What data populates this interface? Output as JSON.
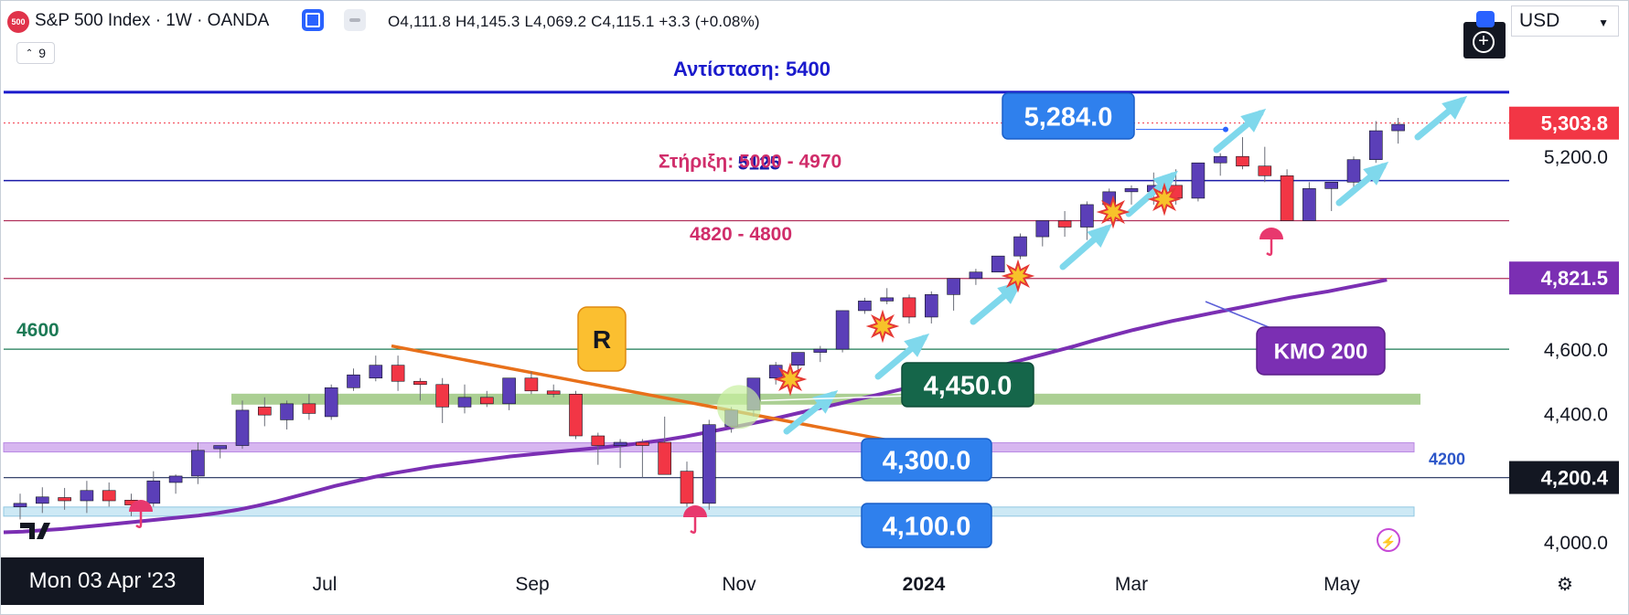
{
  "header": {
    "symbol_badge": "500",
    "title": "S&P 500 Index · 1W · OANDA",
    "ohlc": "O4,111.8  H4,145.3  L4,069.2  C4,115.1  +3.3 (+0.08%)",
    "indicator_count": "9",
    "currency": "USD"
  },
  "crosshair_date": "Mon 03 Apr '23",
  "colors": {
    "up": "#5b3fb8",
    "down": "#f23645",
    "sma": "#7b2fb3",
    "resistance": "#1a1acc",
    "support": "#b0305a",
    "arrow": "#7fd8ec",
    "trendline": "#e8701a"
  },
  "icons": [
    "symbol-logo-icon",
    "color-square-icon",
    "minus-toggle-icon",
    "plus-circle-icon",
    "tradingview-logo-icon",
    "dividend-umbrella-icon",
    "explosion-icon",
    "bolt-icon",
    "gear-icon"
  ],
  "chart_data": {
    "type": "candlestick",
    "title": "S&P 500 Index · 1W · OANDA",
    "y_axis": {
      "min": 3930,
      "max": 5560,
      "ticks": [
        "5,200.0",
        "4,600.0",
        "4,400.0",
        "4,000.0"
      ]
    },
    "x_axis": {
      "labels": [
        "Jul",
        "Sep",
        "Nov",
        "2024",
        "Mar",
        "May"
      ]
    },
    "candles": [
      [
        4109,
        4150,
        4070,
        4120
      ],
      [
        4120,
        4170,
        4090,
        4140
      ],
      [
        4138,
        4168,
        4100,
        4128
      ],
      [
        4128,
        4190,
        4090,
        4160
      ],
      [
        4160,
        4185,
        4110,
        4128
      ],
      [
        4130,
        4150,
        4080,
        4115
      ],
      [
        4120,
        4220,
        4110,
        4190
      ],
      [
        4185,
        4210,
        4150,
        4205
      ],
      [
        4205,
        4310,
        4180,
        4285
      ],
      [
        4290,
        4300,
        4260,
        4300
      ],
      [
        4300,
        4440,
        4290,
        4410
      ],
      [
        4420,
        4450,
        4360,
        4395
      ],
      [
        4380,
        4440,
        4350,
        4430
      ],
      [
        4430,
        4460,
        4380,
        4400
      ],
      [
        4390,
        4490,
        4380,
        4480
      ],
      [
        4480,
        4540,
        4470,
        4520
      ],
      [
        4510,
        4580,
        4500,
        4550
      ],
      [
        4550,
        4580,
        4470,
        4500
      ],
      [
        4500,
        4510,
        4440,
        4490
      ],
      [
        4490,
        4510,
        4370,
        4420
      ],
      [
        4420,
        4490,
        4400,
        4450
      ],
      [
        4450,
        4470,
        4420,
        4430
      ],
      [
        4430,
        4510,
        4410,
        4510
      ],
      [
        4510,
        4530,
        4460,
        4470
      ],
      [
        4470,
        4490,
        4450,
        4460
      ],
      [
        4460,
        4470,
        4320,
        4330
      ],
      [
        4330,
        4340,
        4240,
        4300
      ],
      [
        4300,
        4320,
        4230,
        4310
      ],
      [
        4310,
        4320,
        4200,
        4300
      ],
      [
        4310,
        4390,
        4220,
        4210
      ],
      [
        4220,
        4250,
        4110,
        4120
      ],
      [
        4120,
        4380,
        4100,
        4365
      ],
      [
        4360,
        4420,
        4340,
        4410
      ],
      [
        4410,
        4510,
        4390,
        4510
      ],
      [
        4510,
        4560,
        4490,
        4550
      ],
      [
        4550,
        4590,
        4530,
        4590
      ],
      [
        4590,
        4610,
        4560,
        4600
      ],
      [
        4600,
        4720,
        4590,
        4720
      ],
      [
        4720,
        4760,
        4710,
        4750
      ],
      [
        4750,
        4790,
        4740,
        4760
      ],
      [
        4760,
        4770,
        4680,
        4700
      ],
      [
        4700,
        4780,
        4680,
        4770
      ],
      [
        4770,
        4810,
        4720,
        4820
      ],
      [
        4820,
        4850,
        4800,
        4840
      ],
      [
        4840,
        4890,
        4840,
        4890
      ],
      [
        4890,
        4960,
        4880,
        4950
      ],
      [
        4950,
        5000,
        4920,
        5000
      ],
      [
        5000,
        5030,
        4950,
        4980
      ],
      [
        4980,
        5060,
        4940,
        5050
      ],
      [
        5050,
        5100,
        5010,
        5090
      ],
      [
        5090,
        5110,
        5050,
        5100
      ],
      [
        5090,
        5150,
        5050,
        5110
      ],
      [
        5110,
        5160,
        5050,
        5070
      ],
      [
        5070,
        5180,
        5060,
        5180
      ],
      [
        5180,
        5210,
        5140,
        5200
      ],
      [
        5200,
        5260,
        5160,
        5170
      ],
      [
        5170,
        5230,
        5120,
        5140
      ],
      [
        5140,
        5160,
        5000,
        5000
      ],
      [
        5000,
        5120,
        5000,
        5100
      ],
      [
        5100,
        5120,
        5030,
        5120
      ],
      [
        5120,
        5200,
        5100,
        5190
      ],
      [
        5190,
        5310,
        5180,
        5280
      ],
      [
        5280,
        5320,
        5240,
        5300
      ]
    ],
    "sma200": [
      4030,
      4032,
      4036,
      4040,
      4046,
      4052,
      4058,
      4064,
      4070,
      4076,
      4082,
      4090,
      4100,
      4112,
      4126,
      4142,
      4158,
      4174,
      4188,
      4202,
      4214,
      4224,
      4234,
      4242,
      4250,
      4258,
      4266,
      4272,
      4278,
      4284,
      4290,
      4296,
      4302,
      4310,
      4318,
      4328,
      4340,
      4352,
      4364,
      4376,
      4390,
      4404,
      4418,
      4432,
      4446,
      4460,
      4474,
      4488,
      4502,
      4516,
      4530,
      4546,
      4562,
      4578,
      4594,
      4610,
      4628,
      4644,
      4660,
      4674,
      4688,
      4700,
      4712,
      4724,
      4736,
      4748,
      4760,
      4770,
      4780,
      4792,
      4804,
      4816
    ],
    "horizontal_lines": [
      {
        "value": 5400,
        "label": "Αντίσταση: 5400"
      },
      {
        "value": 5125,
        "label": "5125"
      },
      {
        "value": 5000,
        "label": "Στήριξη: 5000 - 4970"
      },
      {
        "value": 4820,
        "label": "4820 - 4800"
      },
      {
        "value": 4600,
        "label": "4600"
      },
      {
        "value": 4200,
        "label": "4200"
      }
    ],
    "price_tags": [
      {
        "value": 5303.8,
        "text": "5,303.8",
        "color": "#f23645"
      },
      {
        "value": 4821.5,
        "text": "4,821.5",
        "color": "#7b2fb3"
      },
      {
        "value": 4200.4,
        "text": "4,200.4",
        "color": "#131722"
      }
    ],
    "callouts": [
      {
        "text": "5,284.0",
        "value": 5284
      },
      {
        "text": "4,450.0",
        "value": 4450
      },
      {
        "text": "4,300.0",
        "value": 4300
      },
      {
        "text": "4,100.0",
        "value": 4100
      },
      {
        "text": "R"
      },
      {
        "text": "ΚΜΟ 200"
      }
    ]
  }
}
